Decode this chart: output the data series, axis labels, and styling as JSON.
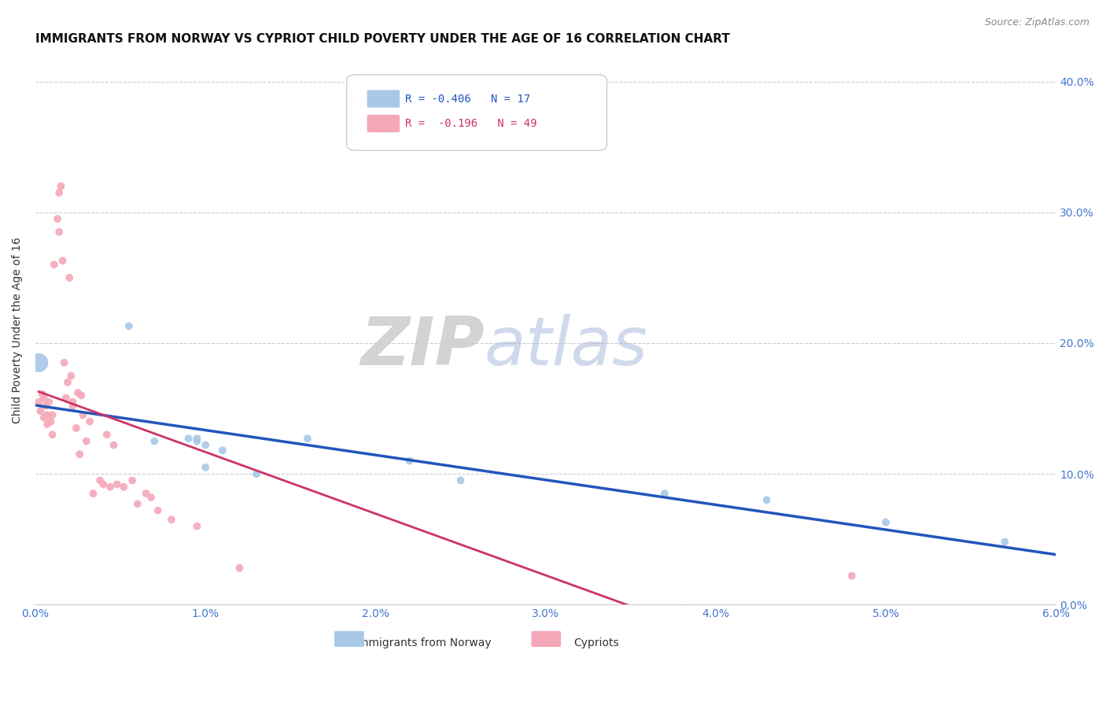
{
  "title": "IMMIGRANTS FROM NORWAY VS CYPRIOT CHILD POVERTY UNDER THE AGE OF 16 CORRELATION CHART",
  "source": "Source: ZipAtlas.com",
  "ylabel": "Child Poverty Under the Age of 16",
  "xlim": [
    0.0,
    0.06
  ],
  "ylim": [
    0.0,
    0.42
  ],
  "yticks": [
    0.0,
    0.1,
    0.2,
    0.3,
    0.4
  ],
  "xticks": [
    0.0,
    0.01,
    0.02,
    0.03,
    0.04,
    0.05,
    0.06
  ],
  "xtick_labels": [
    "0.0%",
    "1.0%",
    "2.0%",
    "3.0%",
    "4.0%",
    "5.0%",
    "6.0%"
  ],
  "ytick_labels_right": [
    "0.0%",
    "10.0%",
    "20.0%",
    "30.0%",
    "40.0%"
  ],
  "norway_color": "#a8c8e8",
  "cypriot_color": "#f4a8b8",
  "norway_line_color": "#2255bb",
  "cypriot_line_color": "#cc3366",
  "legend_norway_r": "-0.406",
  "legend_norway_n": "17",
  "legend_cypriot_r": "-0.196",
  "legend_cypriot_n": "49",
  "norway_x": [
    0.0002,
    0.0055,
    0.007,
    0.009,
    0.0095,
    0.0095,
    0.01,
    0.01,
    0.011,
    0.013,
    0.016,
    0.022,
    0.025,
    0.037,
    0.043,
    0.05,
    0.057
  ],
  "norway_y": [
    0.185,
    0.213,
    0.125,
    0.127,
    0.127,
    0.125,
    0.122,
    0.105,
    0.118,
    0.1,
    0.127,
    0.11,
    0.095,
    0.085,
    0.08,
    0.063,
    0.048
  ],
  "norway_size": [
    300,
    50,
    50,
    50,
    50,
    50,
    50,
    50,
    50,
    50,
    50,
    50,
    50,
    50,
    50,
    50,
    50
  ],
  "cypriot_x": [
    0.0002,
    0.0003,
    0.0004,
    0.0005,
    0.0005,
    0.0006,
    0.0007,
    0.0007,
    0.0008,
    0.0009,
    0.001,
    0.001,
    0.0011,
    0.0013,
    0.0014,
    0.0014,
    0.0015,
    0.0016,
    0.0017,
    0.0018,
    0.0019,
    0.002,
    0.0021,
    0.0022,
    0.0022,
    0.0024,
    0.0025,
    0.0026,
    0.0027,
    0.0028,
    0.003,
    0.0032,
    0.0034,
    0.0038,
    0.004,
    0.0042,
    0.0044,
    0.0046,
    0.0048,
    0.0052,
    0.0057,
    0.006,
    0.0065,
    0.0068,
    0.0072,
    0.008,
    0.0095,
    0.012,
    0.048
  ],
  "cypriot_y": [
    0.155,
    0.148,
    0.161,
    0.158,
    0.143,
    0.152,
    0.145,
    0.138,
    0.155,
    0.14,
    0.13,
    0.145,
    0.26,
    0.295,
    0.315,
    0.285,
    0.32,
    0.263,
    0.185,
    0.158,
    0.17,
    0.25,
    0.175,
    0.152,
    0.155,
    0.135,
    0.162,
    0.115,
    0.16,
    0.145,
    0.125,
    0.14,
    0.085,
    0.095,
    0.092,
    0.13,
    0.09,
    0.122,
    0.092,
    0.09,
    0.095,
    0.077,
    0.085,
    0.082,
    0.072,
    0.065,
    0.06,
    0.028,
    0.022
  ],
  "cypriot_size": 50,
  "background_color": "#ffffff",
  "grid_color": "#cccccc",
  "axis_color": "#4477cc",
  "title_fontsize": 11,
  "label_fontsize": 10
}
